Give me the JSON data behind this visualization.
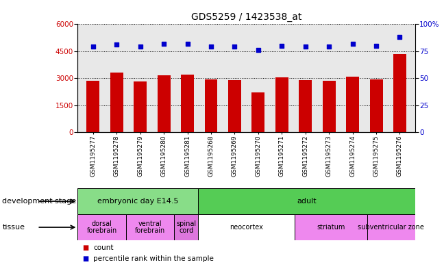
{
  "title": "GDS5259 / 1423538_at",
  "samples": [
    "GSM1195277",
    "GSM1195278",
    "GSM1195279",
    "GSM1195280",
    "GSM1195281",
    "GSM1195268",
    "GSM1195269",
    "GSM1195270",
    "GSM1195271",
    "GSM1195272",
    "GSM1195273",
    "GSM1195274",
    "GSM1195275",
    "GSM1195276"
  ],
  "counts": [
    2850,
    3300,
    2800,
    3150,
    3200,
    2950,
    2900,
    2200,
    3050,
    2900,
    2850,
    3100,
    2950,
    4350
  ],
  "percentiles": [
    79,
    81,
    79,
    82,
    82,
    79,
    79,
    76,
    80,
    79,
    79,
    82,
    80,
    88
  ],
  "ylim_left": [
    0,
    6000
  ],
  "ylim_right": [
    0,
    100
  ],
  "yticks_left": [
    0,
    1500,
    3000,
    4500,
    6000
  ],
  "yticks_right": [
    0,
    25,
    50,
    75,
    100
  ],
  "bar_color": "#cc0000",
  "scatter_color": "#0000cc",
  "plot_bg": "#e8e8e8",
  "development_stages": [
    {
      "label": "embryonic day E14.5",
      "start": 0,
      "end": 5,
      "color": "#88dd88"
    },
    {
      "label": "adult",
      "start": 5,
      "end": 14,
      "color": "#55cc55"
    }
  ],
  "tissues": [
    {
      "label": "dorsal\nforebrain",
      "start": 0,
      "end": 2,
      "color": "#ee88ee"
    },
    {
      "label": "ventral\nforebrain",
      "start": 2,
      "end": 4,
      "color": "#ee88ee"
    },
    {
      "label": "spinal\ncord",
      "start": 4,
      "end": 5,
      "color": "#dd77dd"
    },
    {
      "label": "neocortex",
      "start": 5,
      "end": 9,
      "color": "#ffffff"
    },
    {
      "label": "striatum",
      "start": 9,
      "end": 12,
      "color": "#ee88ee"
    },
    {
      "label": "subventricular zone",
      "start": 12,
      "end": 14,
      "color": "#ee88ee"
    }
  ],
  "dev_stage_label": "development stage",
  "tissue_label": "tissue",
  "legend_count": "count",
  "legend_percentile": "percentile rank within the sample",
  "background_color": "#ffffff"
}
